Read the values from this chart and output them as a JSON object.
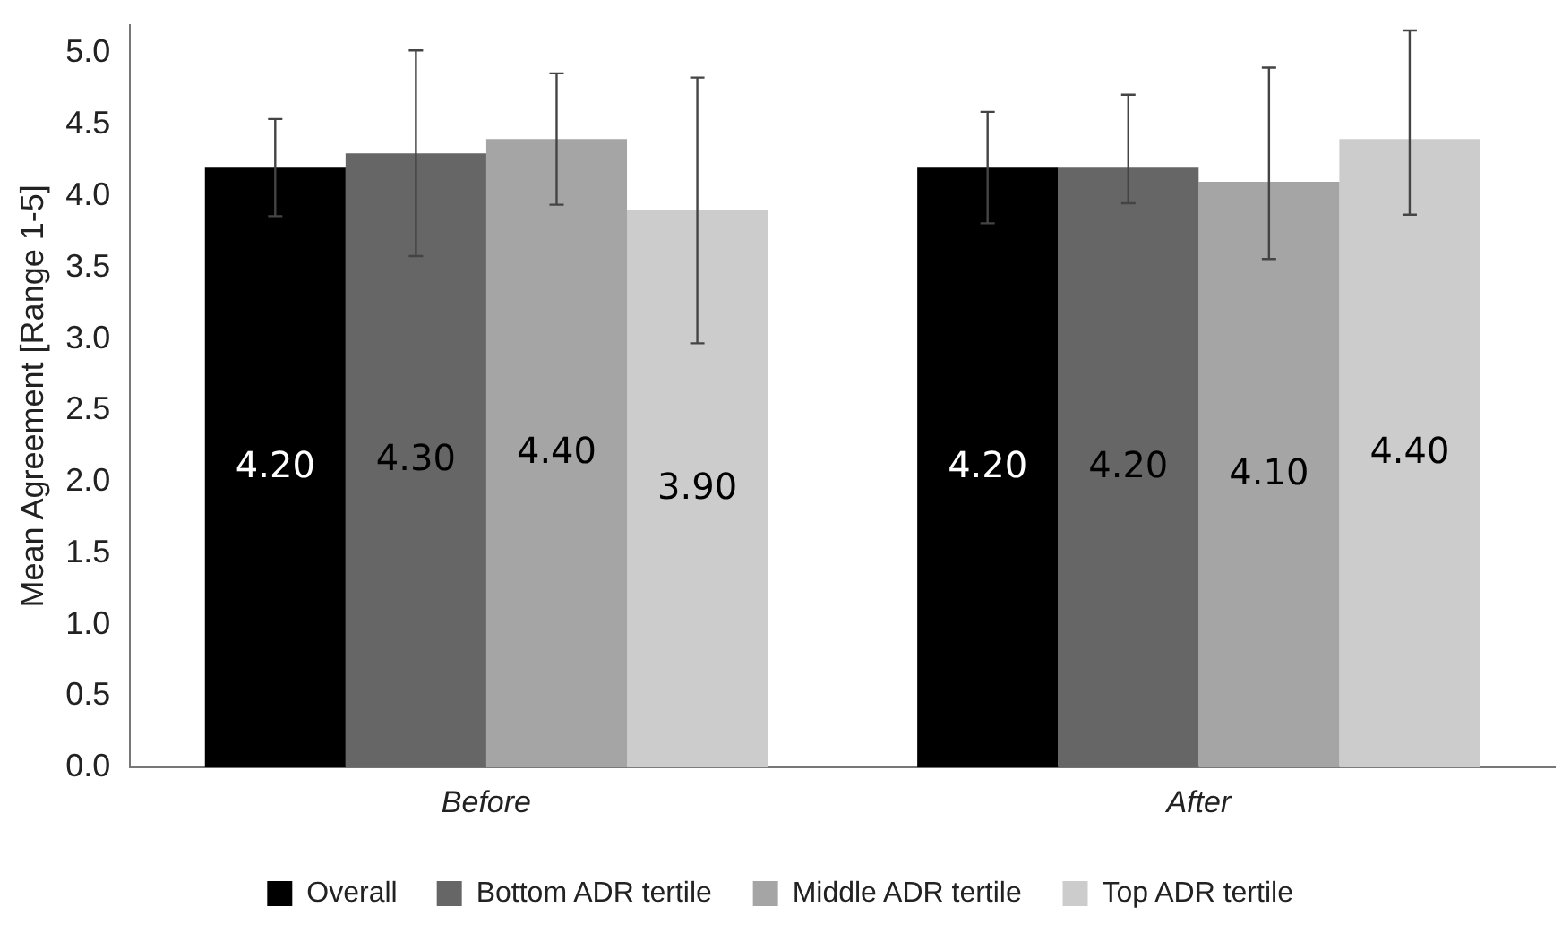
{
  "chart_data": {
    "type": "bar",
    "ylabel": "Mean Agreement [Range 1-5]",
    "categories": [
      "Before",
      "After"
    ],
    "series": [
      {
        "name": "Overall",
        "color": "#000000",
        "values": [
          4.2,
          4.2
        ],
        "errors": [
          0.34,
          0.39
        ],
        "value_labels": [
          "4.20",
          "4.20"
        ]
      },
      {
        "name": "Bottom ADR tertile",
        "color": "#666666",
        "values": [
          4.3,
          4.2
        ],
        "errors": [
          0.72,
          [
            3.95,
            4.71
          ]
        ],
        "value_labels": [
          "4.30",
          "4.20"
        ]
      },
      {
        "name": "Middle ADR tertile",
        "color": "#a5a5a5",
        "values": [
          4.4,
          4.1
        ],
        "errors": [
          0.46,
          [
            3.56,
            4.9
          ]
        ],
        "value_labels": [
          "4.40",
          "4.10"
        ]
      },
      {
        "name": "Top ADR tertile",
        "color": "#cccccc",
        "values": [
          3.9,
          4.4
        ],
        "errors": [
          0.93,
          [
            3.87,
            5.16
          ]
        ],
        "value_labels": [
          "3.90",
          "4.40"
        ]
      }
    ],
    "ylim": [
      0,
      5.2
    ],
    "yticks": [
      {
        "value": 0,
        "label": "0.0"
      },
      0.5,
      {
        "value": 1,
        "label": "1.0"
      },
      1.5,
      {
        "value": 2,
        "label": "2.0"
      },
      2.5,
      {
        "value": 3,
        "label": "3.0"
      },
      3.5,
      {
        "value": 4,
        "label": "4.0"
      },
      4.5,
      {
        "value": 5,
        "label": "5.0"
      }
    ],
    "grid": false,
    "legend": "bottom"
  }
}
